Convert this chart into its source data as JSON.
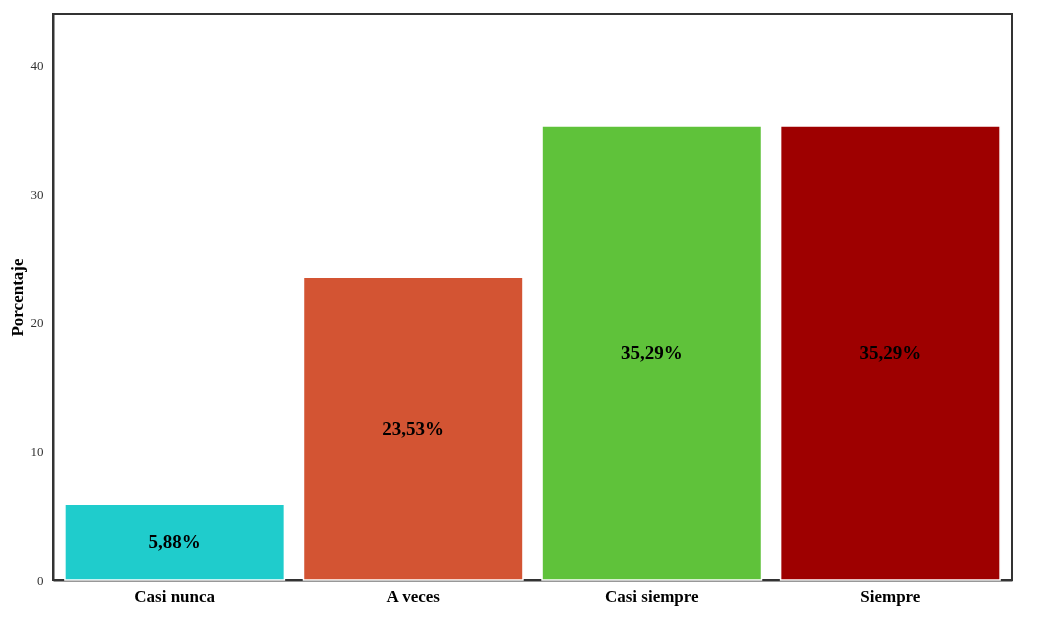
{
  "chart_data": {
    "type": "bar",
    "ylabel": "Porcentaje",
    "categories": [
      "Casi nunca",
      "A veces",
      "Casi siempre",
      "Siempre"
    ],
    "values": [
      5.88,
      23.53,
      35.29,
      35.29
    ],
    "colors": [
      "#1fcccc",
      "#d35433",
      "#5fc23a",
      "#9e0000"
    ],
    "value_labels": [
      "5,88%",
      "23,53%",
      "35,29%",
      "35,29%"
    ],
    "ylim": [
      0,
      44
    ],
    "yticks": [
      0,
      10,
      20,
      30,
      40
    ],
    "grid": false
  }
}
